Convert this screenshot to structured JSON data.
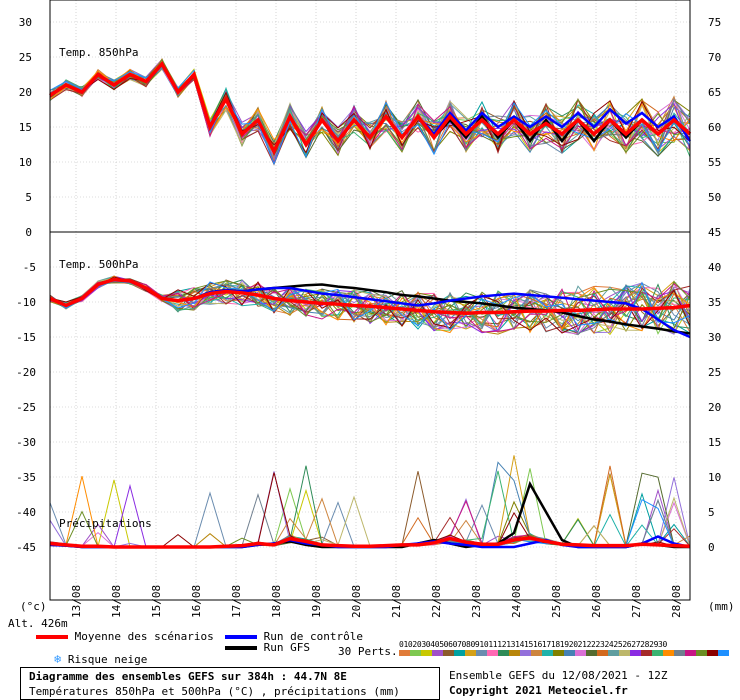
{
  "labels": {
    "temp850": "Temp. 850hPa",
    "temp500": "Temp. 500hPa",
    "precip": "Précipitations",
    "unit_left": "(°c)",
    "unit_right": "(mm)",
    "altitude": "Alt. 426m"
  },
  "legend": {
    "mean": "Moyenne des scénarios",
    "control": "Run de contrôle",
    "gfs": "Run GFS",
    "snow": "Risque neige",
    "perts": "30 Perts.",
    "pert_numbers": "010203040506070809101112131415161718192021222324252627282930"
  },
  "footer": {
    "title": "Diagramme des ensembles GEFS sur 384h : 44.7N 8E",
    "subtitle": "Températures 850hPa et 500hPa (°C) , précipitations (mm)",
    "run": "Ensemble GEFS du 12/08/2021 - 12Z",
    "copyright": "Copyright 2021 Meteociel.fr"
  },
  "colors": {
    "mean": "#ff0000",
    "control": "#0000ff",
    "gfs": "#000000",
    "snow": "#3399ff",
    "members": [
      "#e07b39",
      "#7ec850",
      "#c8c800",
      "#a050c8",
      "#8b5a2b",
      "#00a0a0",
      "#d4a017",
      "#6a8caf",
      "#ff69b4",
      "#2e8b57",
      "#b8860b",
      "#9370db",
      "#cd853f",
      "#20b2aa",
      "#808000",
      "#4682b4",
      "#da70d6",
      "#556b2f",
      "#d2691e",
      "#5f9ea0",
      "#bdb76b",
      "#8a2be2",
      "#a52a2a",
      "#3cb371",
      "#ff8c00",
      "#708090",
      "#c71585",
      "#6b8e23",
      "#8b0000",
      "#1e90ff"
    ]
  },
  "chart_data": {
    "type": "line",
    "x_ticks": [
      "13/08",
      "14/08",
      "15/08",
      "16/08",
      "17/08",
      "18/08",
      "19/08",
      "20/08",
      "21/08",
      "22/08",
      "23/08",
      "24/08",
      "25/08",
      "26/08",
      "27/08",
      "28/08"
    ],
    "x_hours_range": [
      0,
      384
    ],
    "panels": [
      {
        "name": "Temp. 850hPa",
        "y_left_ticks": [
          30,
          25,
          20,
          15,
          10,
          5,
          0
        ],
        "y_right_ticks": [
          75,
          70,
          65,
          60,
          55,
          50
        ],
        "ylim": [
          0,
          30
        ],
        "series": [
          {
            "name": "Moyenne des scénarios",
            "values": [
              19.5,
              21,
              20,
              22.5,
              21,
              22.5,
              21.5,
              24,
              20,
              22.5,
              15,
              19,
              14,
              16,
              11.5,
              16.5,
              12.5,
              16,
              13,
              16,
              13.5,
              16.5,
              13.5,
              16.5,
              13.5,
              16.5,
              14,
              16,
              14,
              16,
              14,
              15.5,
              14,
              16,
              14,
              16,
              14,
              16,
              14,
              16,
              14
            ]
          },
          {
            "name": "Run de contrôle",
            "values": [
              19.5,
              21,
              20,
              22.5,
              21,
              22.5,
              21.5,
              24,
              20,
              22.5,
              15,
              19,
              14,
              16,
              11.5,
              16.5,
              12.5,
              16,
              13,
              16,
              13.5,
              16.5,
              13.5,
              16.5,
              14,
              17,
              14.5,
              17,
              15,
              16.5,
              15,
              16.5,
              15,
              17,
              15,
              17.5,
              15.5,
              17,
              15,
              16.5,
              13
            ]
          },
          {
            "name": "Run GFS",
            "values": [
              19.5,
              21,
              20,
              22.5,
              21,
              22.5,
              21.5,
              24,
              20,
              22.5,
              15,
              19,
              14,
              16,
              11.5,
              16.5,
              12.5,
              16,
              13,
              16,
              13.5,
              16.5,
              13.5,
              16.5,
              13.5,
              16,
              13.5,
              16.5,
              13.5,
              16,
              13,
              16,
              13,
              16,
              13,
              16,
              13.5,
              16,
              14,
              16,
              14
            ]
          }
        ]
      },
      {
        "name": "Temp. 500hPa",
        "y_left_ticks": [
          -5,
          -10,
          -15,
          -20,
          -25,
          -30,
          -35,
          -40,
          -45
        ],
        "ylim": [
          -45,
          0
        ],
        "series": [
          {
            "name": "Moyenne des scénarios",
            "values": [
              -9.5,
              -10.5,
              -9.5,
              -7.5,
              -6.8,
              -7,
              -8,
              -9.5,
              -9.8,
              -9.5,
              -8.8,
              -8.5,
              -8.7,
              -9,
              -9.5,
              -9.8,
              -10,
              -10.2,
              -10.3,
              -10.5,
              -10.6,
              -10.8,
              -11,
              -11.2,
              -11.4,
              -11.5,
              -11.6,
              -11.5,
              -11.5,
              -11.4,
              -11.3,
              -11.3,
              -11.2,
              -11.2,
              -11.1,
              -11,
              -11,
              -11,
              -10.9,
              -10.8,
              -10.5
            ]
          },
          {
            "name": "Run de contrôle",
            "values": [
              -9.5,
              -10.5,
              -9.5,
              -7.5,
              -6.8,
              -7,
              -8,
              -9.5,
              -9.8,
              -9.5,
              -8.6,
              -8.3,
              -8.5,
              -8.2,
              -8,
              -8,
              -8.4,
              -8.8,
              -9,
              -9.3,
              -9.6,
              -9.9,
              -10.2,
              -10.5,
              -10.2,
              -9.8,
              -9.5,
              -9.2,
              -9,
              -8.8,
              -9,
              -9.2,
              -9.4,
              -9.6,
              -9.8,
              -10,
              -10.2,
              -11,
              -12.5,
              -14,
              -15
            ]
          },
          {
            "name": "Run GFS",
            "values": [
              -9.5,
              -10.5,
              -9.5,
              -7.5,
              -6.8,
              -7,
              -8,
              -9.5,
              -9.8,
              -9.5,
              -8.6,
              -8.3,
              -8.5,
              -8.2,
              -8,
              -7.8,
              -7.6,
              -7.5,
              -7.8,
              -8,
              -8.3,
              -8.6,
              -9,
              -9.2,
              -9.5,
              -9.8,
              -10,
              -10.2,
              -10.5,
              -10.8,
              -11,
              -11.2,
              -11.5,
              -12,
              -12.5,
              -12.8,
              -13.2,
              -13.5,
              -13.8,
              -14.2,
              -14.5
            ]
          }
        ]
      },
      {
        "name": "Précipitations",
        "y_right_ticks": [
          45,
          40,
          35,
          30,
          25,
          20,
          15,
          10,
          5,
          0
        ],
        "ylim": [
          0,
          45
        ],
        "unit": "mm",
        "series": [
          {
            "name": "Moyenne des scénarios",
            "values": [
              0.5,
              0.3,
              0.1,
              0.1,
              0,
              0,
              0,
              0,
              0,
              0,
              0,
              0.1,
              0.2,
              0.5,
              0.3,
              1.2,
              0.8,
              0.3,
              0.2,
              0.1,
              0.1,
              0.2,
              0.3,
              0.3,
              0.6,
              1.2,
              0.7,
              0.4,
              0.4,
              1,
              1.3,
              0.8,
              0.4,
              0.3,
              0.2,
              0.2,
              0.2,
              0.4,
              0.3,
              0.2,
              0.1
            ]
          },
          {
            "name": "Run de contrôle",
            "values": [
              0.3,
              0.2,
              0,
              0,
              0,
              0,
              0,
              0,
              0,
              0,
              0,
              0,
              0,
              0.3,
              0.5,
              1,
              0.5,
              0.3,
              0,
              0,
              0,
              0,
              0.3,
              0.5,
              0.8,
              0.5,
              0.3,
              0,
              0,
              0,
              0.5,
              1,
              0.3,
              0,
              0,
              0,
              0,
              0.5,
              1.5,
              0.5,
              0
            ]
          },
          {
            "name": "Run GFS",
            "values": [
              0.3,
              0.2,
              0,
              0,
              0,
              0,
              0,
              0,
              0,
              0,
              0,
              0,
              0,
              0.3,
              0.5,
              0.8,
              0.3,
              0,
              0,
              0,
              0,
              0,
              0,
              0.5,
              1,
              0.5,
              0,
              0.3,
              0.5,
              2,
              9,
              5,
              1,
              0,
              0,
              0,
              0,
              0.5,
              0.3,
              0,
              0
            ]
          }
        ]
      }
    ],
    "legend_placement": "bottom",
    "grid": true
  }
}
